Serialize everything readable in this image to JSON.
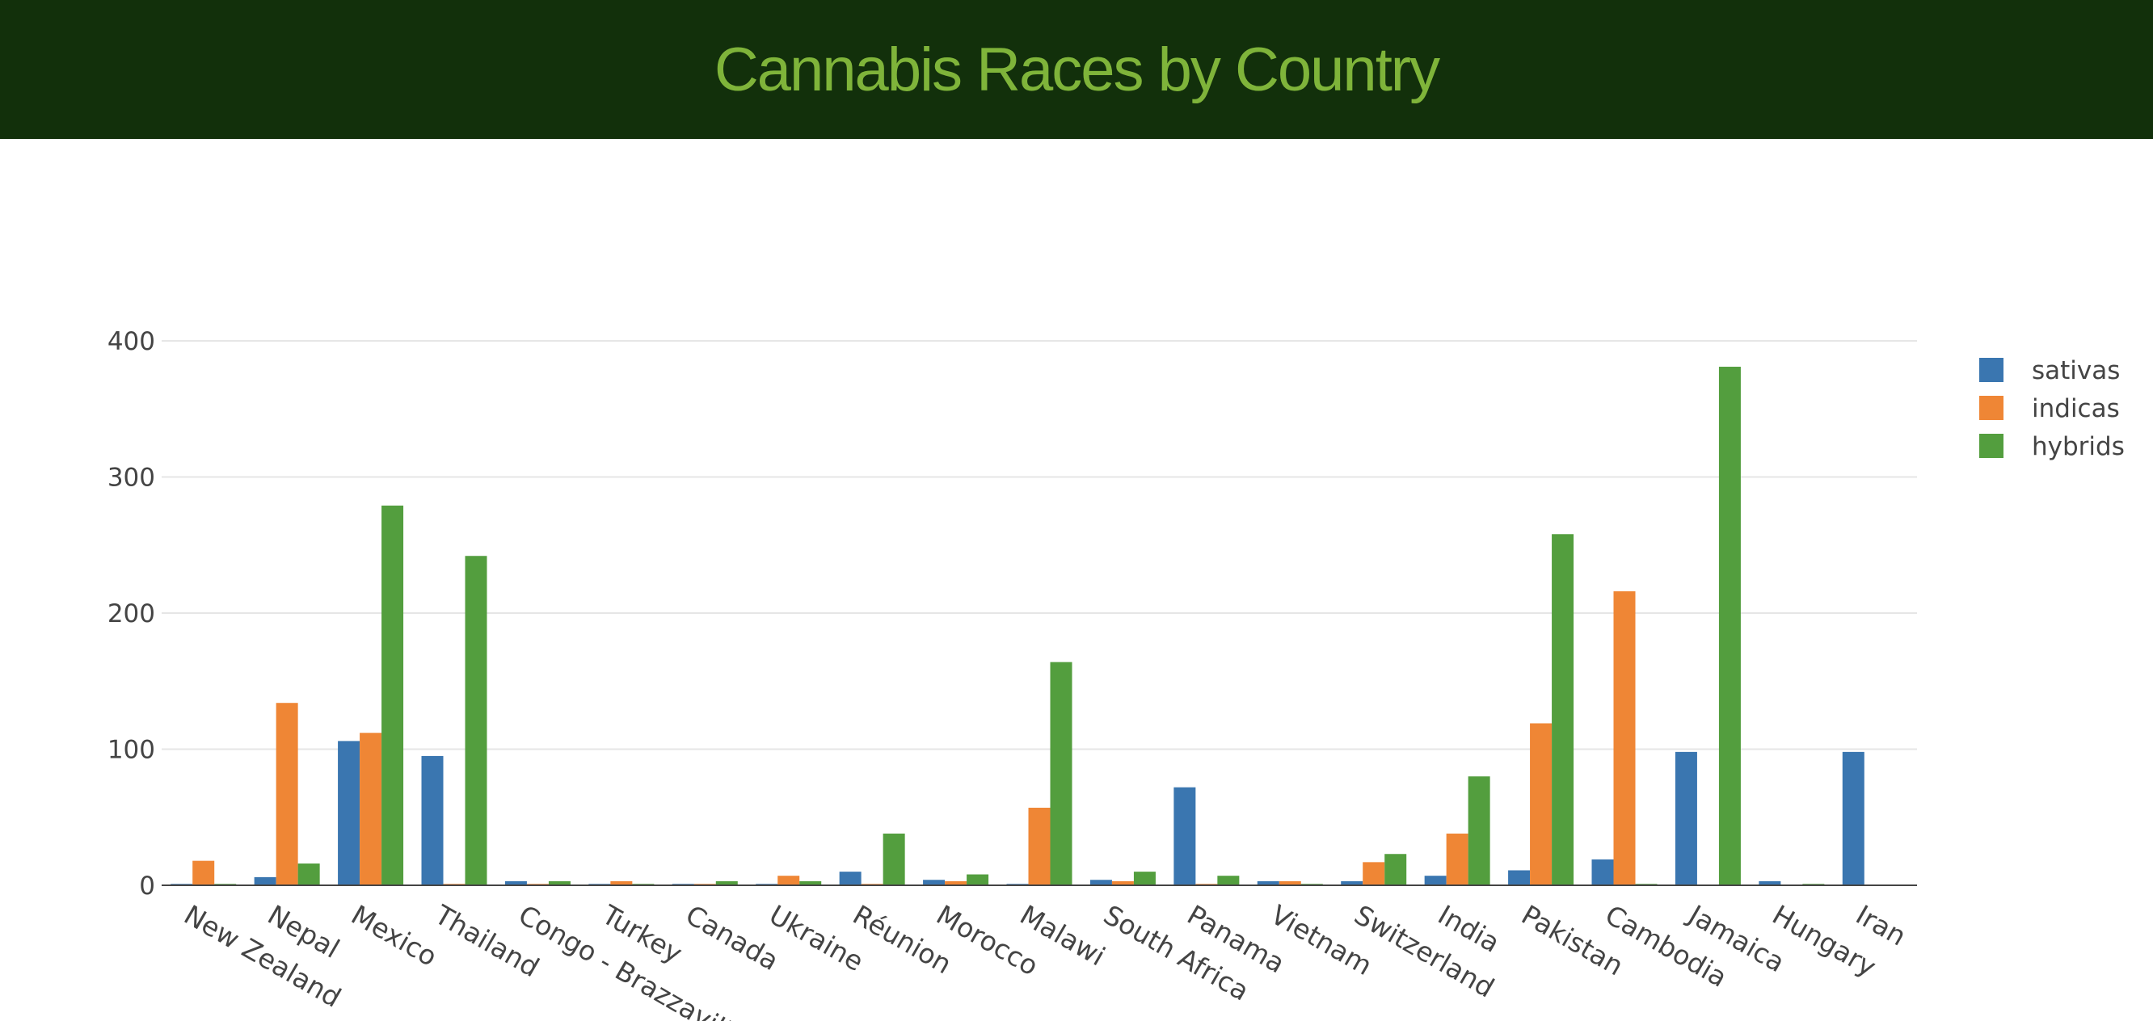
{
  "header": {
    "title": "Cannabis Races by Country"
  },
  "chart_data": {
    "type": "bar",
    "categories": [
      "New Zealand",
      "Nepal",
      "Mexico",
      "Thailand",
      "Congo - Brazzaville",
      "Turkey",
      "Canada",
      "Ukraine",
      "Réunion",
      "Morocco",
      "Malawi",
      "South Africa",
      "Panama",
      "Vietnam",
      "Switzerland",
      "India",
      "Pakistan",
      "Cambodia",
      "Jamaica",
      "Hungary",
      "Iran"
    ],
    "series": [
      {
        "name": "sativas",
        "color": "#3a76b0",
        "values": [
          1,
          6,
          106,
          95,
          3,
          1,
          1,
          1,
          10,
          4,
          1,
          4,
          72,
          3,
          3,
          7,
          11,
          19,
          98,
          3,
          98
        ]
      },
      {
        "name": "indicas",
        "color": "#ef8635",
        "values": [
          18,
          134,
          112,
          1,
          1,
          3,
          1,
          7,
          1,
          3,
          57,
          3,
          1,
          3,
          17,
          38,
          119,
          216,
          0,
          0,
          0
        ]
      },
      {
        "name": "hybrids",
        "color": "#539e3e",
        "values": [
          1,
          16,
          279,
          242,
          3,
          1,
          3,
          3,
          38,
          8,
          164,
          10,
          7,
          1,
          23,
          80,
          258,
          1,
          381,
          1,
          0
        ]
      }
    ],
    "yticks": [
      0,
      100,
      200,
      300,
      400
    ],
    "ylim": [
      0,
      400
    ],
    "grid": true,
    "legend_position": "top-right"
  }
}
